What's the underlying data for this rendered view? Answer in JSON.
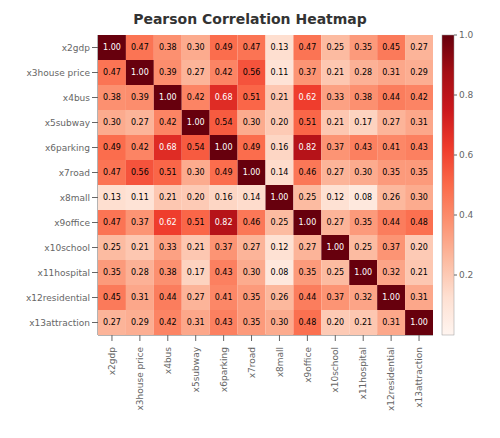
{
  "chart_data": {
    "type": "heatmap",
    "title": "Pearson Correlation Heatmap",
    "x_categories": [
      "x2gdp",
      "x3house price",
      "x4bus",
      "x5subway",
      "x6parking",
      "x7road",
      "x8mall",
      "x9office",
      "x10school",
      "x11hospital",
      "x12residential",
      "x13attraction"
    ],
    "y_categories": [
      "x2gdp",
      "x3house price",
      "x4bus",
      "x5subway",
      "x6parking",
      "x7road",
      "x8mall",
      "x9office",
      "x10school",
      "x11hospital",
      "x12residential",
      "x13attraction"
    ],
    "values": [
      [
        1.0,
        0.47,
        0.38,
        0.3,
        0.49,
        0.47,
        0.13,
        0.47,
        0.25,
        0.35,
        0.45,
        0.27
      ],
      [
        0.47,
        1.0,
        0.39,
        0.27,
        0.42,
        0.56,
        0.11,
        0.37,
        0.21,
        0.28,
        0.31,
        0.29
      ],
      [
        0.38,
        0.39,
        1.0,
        0.42,
        0.68,
        0.51,
        0.21,
        0.62,
        0.33,
        0.38,
        0.44,
        0.42
      ],
      [
        0.3,
        0.27,
        0.42,
        1.0,
        0.54,
        0.3,
        0.2,
        0.51,
        0.21,
        0.17,
        0.27,
        0.31
      ],
      [
        0.49,
        0.42,
        0.68,
        0.54,
        1.0,
        0.49,
        0.16,
        0.82,
        0.37,
        0.43,
        0.41,
        0.43
      ],
      [
        0.47,
        0.56,
        0.51,
        0.3,
        0.49,
        1.0,
        0.14,
        0.46,
        0.27,
        0.3,
        0.35,
        0.35
      ],
      [
        0.13,
        0.11,
        0.21,
        0.2,
        0.16,
        0.14,
        1.0,
        0.25,
        0.12,
        0.08,
        0.26,
        0.3
      ],
      [
        0.47,
        0.37,
        0.62,
        0.51,
        0.82,
        0.46,
        0.25,
        1.0,
        0.27,
        0.35,
        0.44,
        0.48
      ],
      [
        0.25,
        0.21,
        0.33,
        0.21,
        0.37,
        0.27,
        0.12,
        0.27,
        1.0,
        0.25,
        0.37,
        0.2
      ],
      [
        0.35,
        0.28,
        0.38,
        0.17,
        0.43,
        0.3,
        0.08,
        0.35,
        0.25,
        1.0,
        0.32,
        0.21
      ],
      [
        0.45,
        0.31,
        0.44,
        0.27,
        0.41,
        0.35,
        0.26,
        0.44,
        0.37,
        0.32,
        1.0,
        0.31
      ],
      [
        0.27,
        0.29,
        0.42,
        0.31,
        0.43,
        0.35,
        0.3,
        0.48,
        0.2,
        0.21,
        0.31,
        1.0
      ]
    ],
    "value_labels": [
      [
        "1.00",
        "0.47",
        "0.38",
        "0.30",
        "0.49",
        "0.47",
        "0.13",
        "0.47",
        "0.25",
        "0.35",
        "0.45",
        "0.27"
      ],
      [
        "0.47",
        "1.00",
        "0.39",
        "0.27",
        "0.42",
        "0.56",
        "0.11",
        "0.37",
        "0.21",
        "0.28",
        "0.31",
        "0.29"
      ],
      [
        "0.38",
        "0.39",
        "1.00",
        "0.42",
        "0.68",
        "0.51",
        "0.21",
        "0.62",
        "0.33",
        "0.38",
        "0.44",
        "0.42"
      ],
      [
        "0.30",
        "0.27",
        "0.42",
        "1.00",
        "0.54",
        "0.30",
        "0.20",
        "0.51",
        "0.21",
        "0.17",
        "0.27",
        "0.31"
      ],
      [
        "0.49",
        "0.42",
        "0.68",
        "0.54",
        "1.00",
        "0.49",
        "0.16",
        "0.82",
        "0.37",
        "0.43",
        "0.41",
        "0.43"
      ],
      [
        "0.47",
        "0.56",
        "0.51",
        "0.30",
        "0.49",
        "1.00",
        "0.14",
        "0.46",
        "0.27",
        "0.30",
        "0.35",
        "0.35"
      ],
      [
        "0.13",
        "0.11",
        "0.21",
        "0.20",
        "0.16",
        "0.14",
        "1.00",
        "0.25",
        "0.12",
        "0.08",
        "0.26",
        "0.30"
      ],
      [
        "0.47",
        "0.37",
        "0.62",
        "0.51",
        "0.82",
        "0.46",
        "0.25",
        "1.00",
        "0.27",
        "0.35",
        "0.44",
        "0.48"
      ],
      [
        "0.25",
        "0.21",
        "0.33",
        "0.21",
        "0.37",
        "0.27",
        "0.12",
        "0.27",
        "1.00",
        "0.25",
        "0.37",
        "0.20"
      ],
      [
        "0.35",
        "0.28",
        "0.38",
        "0.17",
        "0.43",
        "0.30",
        "0.08",
        "0.35",
        "0.25",
        "1.00",
        "0.32",
        "0.21"
      ],
      [
        "0.45",
        "0.31",
        "0.44",
        "0.27",
        "0.41",
        "0.35",
        "0.26",
        "0.44",
        "0.37",
        "0.32",
        "1.00",
        "0.31"
      ],
      [
        "0.27",
        "0.29",
        "0.42",
        "0.31",
        "0.43",
        "0.35",
        "0.30",
        "0.48",
        "0.20",
        "0.21",
        "0.31",
        "1.00"
      ]
    ],
    "data_labels": true,
    "color": "Reds",
    "colorbar_range": [
      0.0,
      1.0
    ],
    "colorbar_ticks": [
      0.2,
      0.4,
      0.6,
      0.8,
      {
        "value": 1.0,
        "label": "1.0"
      }
    ]
  }
}
